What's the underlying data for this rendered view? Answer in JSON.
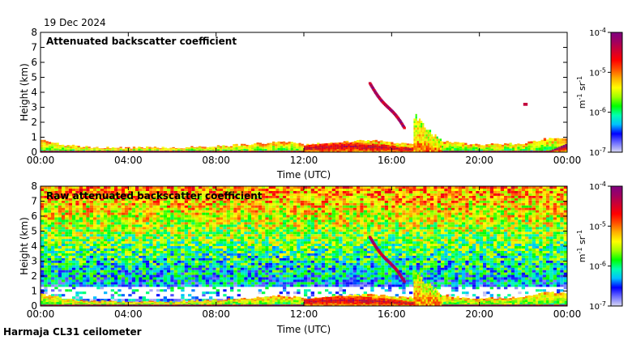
{
  "date": "19 Dec 2024",
  "footer": "Harmaja CL31 ceilometer",
  "colorscale": {
    "type": "log",
    "min_exp": -7,
    "max_exp": -4,
    "ticks": [
      "10-7",
      "10-6",
      "10-5",
      "10-4"
    ],
    "unit": "m-1 sr-1",
    "stops": [
      "#d8d8f2",
      "#7070ff",
      "#0000ff",
      "#00c0ff",
      "#00ffb0",
      "#00ff00",
      "#a0ff00",
      "#ffff00",
      "#ffb000",
      "#ff5000",
      "#ff0000",
      "#d00030",
      "#a00060",
      "#800080"
    ]
  },
  "chart_data": [
    {
      "type": "heatmap",
      "title": "Attenuated backscatter coefficient",
      "xlabel": "Time (UTC)",
      "ylabel": "Height (km)",
      "xlim": [
        0,
        24
      ],
      "ylim": [
        0,
        8
      ],
      "xticks": [
        "00:00",
        "04:00",
        "08:00",
        "12:00",
        "16:00",
        "20:00",
        "00:00"
      ],
      "yticks": [
        "0",
        "1",
        "2",
        "3",
        "4",
        "5",
        "6",
        "7",
        "8"
      ],
      "background_noise": false,
      "features": [
        {
          "name": "boundary-layer aerosol",
          "x_hours": [
            0,
            24
          ],
          "top_km": [
            0.8,
            0.5,
            0.35,
            0.3,
            0.3,
            0.35,
            0.3,
            0.35,
            0.4,
            0.5,
            0.6,
            0.7,
            0.5,
            0.6,
            0.7,
            0.8,
            0.65,
            0.55,
            0.8,
            0.6,
            0.5,
            0.55,
            0.6,
            0.9,
            0.9
          ],
          "level_exp": -5.6
        },
        {
          "name": "dense low layer",
          "x_hours": [
            12.0,
            17.0
          ],
          "height_km": [
            0.05,
            0.65
          ],
          "level_exp": -4.8
        },
        {
          "name": "descending cloud streak",
          "x_hours": [
            15.0,
            16.6
          ],
          "height_km": [
            1.5,
            4.6
          ],
          "level_exp": -4.3
        },
        {
          "name": "convective column",
          "x_hours": [
            17.0,
            18.2
          ],
          "height_km": [
            0,
            2.5
          ],
          "level_exp": -5.2
        },
        {
          "name": "isolated echo",
          "x_hours": [
            22.0,
            22.2
          ],
          "height_km": [
            3.1,
            3.3
          ],
          "level_exp": -4.4
        },
        {
          "name": "low echoes near end",
          "x_hours": [
            23.0,
            24.0
          ],
          "height_km": [
            0,
            0.6
          ],
          "level_exp": -4.7
        }
      ]
    },
    {
      "type": "heatmap",
      "title": "Raw attenuated backscatter coefficient",
      "xlabel": "Time (UTC)",
      "ylabel": "Height (km)",
      "xlim": [
        0,
        24
      ],
      "ylim": [
        0,
        8
      ],
      "xticks": [
        "00:00",
        "04:00",
        "08:00",
        "12:00",
        "16:00",
        "20:00",
        "00:00"
      ],
      "yticks": [
        "0",
        "1",
        "2",
        "3",
        "4",
        "5",
        "6",
        "7",
        "8"
      ],
      "background_noise": true,
      "features": [
        {
          "name": "noise increasing with height",
          "x_hours": [
            0,
            24
          ],
          "height_km": [
            0,
            8
          ],
          "level_exp_bottom": -6.6,
          "level_exp_top": -5.0
        },
        {
          "name": "low clear band",
          "x_hours": [
            0,
            24
          ],
          "height_km": [
            0.4,
            1.2
          ],
          "level_exp": -7.0
        },
        {
          "name": "dense low layer",
          "x_hours": [
            12.0,
            17.0
          ],
          "height_km": [
            0.05,
            0.65
          ],
          "level_exp": -4.8
        },
        {
          "name": "descending cloud streak",
          "x_hours": [
            15.0,
            16.6
          ],
          "height_km": [
            1.5,
            4.6
          ],
          "level_exp": -4.3
        },
        {
          "name": "convective column",
          "x_hours": [
            17.0,
            18.2
          ],
          "height_km": [
            0,
            2.5
          ],
          "level_exp": -5.2
        }
      ]
    }
  ]
}
